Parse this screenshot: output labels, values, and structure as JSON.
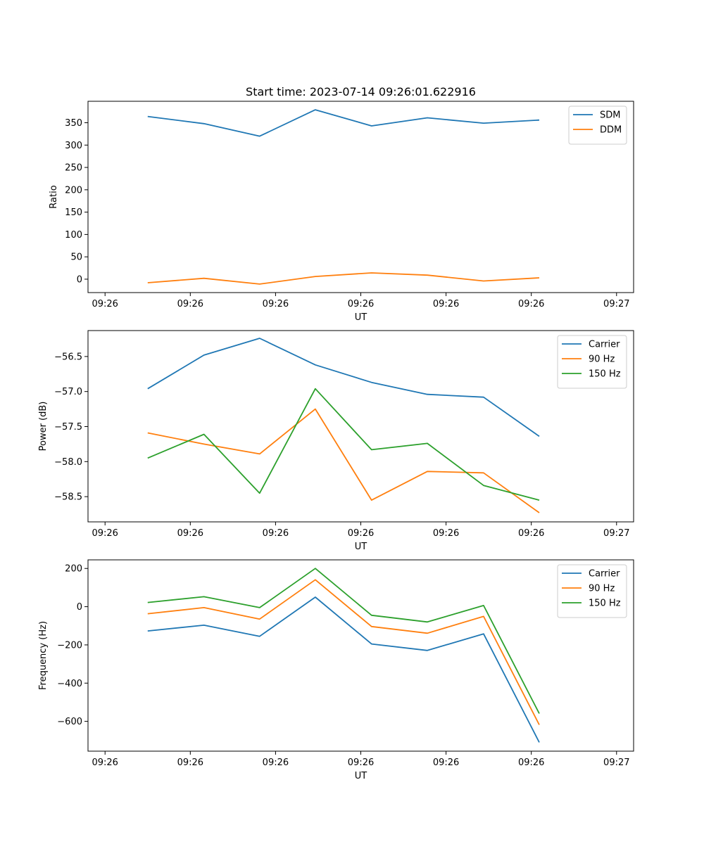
{
  "chart_data": [
    {
      "type": "line",
      "title": "Start time: 2023-07-14 09:26:01.622916",
      "xlabel": "UT",
      "ylabel": "Ratio",
      "xlim": [
        -0.3,
        9.3
      ],
      "ylim": [
        -30,
        398
      ],
      "xticks": [
        0,
        1.5,
        3,
        4.5,
        6,
        7.5,
        9
      ],
      "xtick_labels": [
        "09:26",
        "09:26",
        "09:26",
        "09:26",
        "09:26",
        "09:26",
        "09:27"
      ],
      "yticks": [
        0,
        50,
        100,
        150,
        200,
        250,
        300,
        350
      ],
      "ytick_labels": [
        "0",
        "50",
        "100",
        "150",
        "200",
        "250",
        "300",
        "350"
      ],
      "x": [
        0.75,
        1.74,
        2.72,
        3.7,
        4.69,
        5.67,
        6.66,
        7.64
      ],
      "legend": "top-right",
      "series": [
        {
          "name": "SDM",
          "color": "#1f77b4",
          "values": [
            364,
            348,
            320,
            379,
            343,
            361,
            349,
            356
          ]
        },
        {
          "name": "DDM",
          "color": "#ff7f0e",
          "values": [
            -8,
            2,
            -11,
            6,
            14,
            9,
            -4,
            3
          ]
        }
      ]
    },
    {
      "type": "line",
      "title": "",
      "xlabel": "UT",
      "ylabel": "Power (dB)",
      "xlim": [
        -0.3,
        9.3
      ],
      "ylim": [
        -58.86,
        -56.13
      ],
      "xticks": [
        0,
        1.5,
        3,
        4.5,
        6,
        7.5,
        9
      ],
      "xtick_labels": [
        "09:26",
        "09:26",
        "09:26",
        "09:26",
        "09:26",
        "09:26",
        "09:27"
      ],
      "yticks": [
        -58.5,
        -58.0,
        -57.5,
        -57.0,
        -56.5
      ],
      "ytick_labels": [
        "−58.5",
        "−58.0",
        "−57.5",
        "−57.0",
        "−56.5"
      ],
      "x": [
        0.75,
        1.74,
        2.72,
        3.7,
        4.69,
        5.67,
        6.66,
        7.64
      ],
      "legend": "top-right",
      "series": [
        {
          "name": "Carrier",
          "color": "#1f77b4",
          "values": [
            -56.96,
            -56.48,
            -56.24,
            -56.62,
            -56.87,
            -57.04,
            -57.08,
            -57.64
          ]
        },
        {
          "name": "90 Hz",
          "color": "#ff7f0e",
          "values": [
            -57.59,
            -57.75,
            -57.89,
            -57.25,
            -58.55,
            -58.14,
            -58.16,
            -58.73
          ]
        },
        {
          "name": "150 Hz",
          "color": "#2ca02c",
          "values": [
            -57.95,
            -57.61,
            -58.45,
            -56.96,
            -57.83,
            -57.74,
            -58.34,
            -58.55
          ]
        }
      ]
    },
    {
      "type": "line",
      "title": "",
      "xlabel": "UT",
      "ylabel": "Frequency (Hz)",
      "xlim": [
        -0.3,
        9.3
      ],
      "ylim": [
        -756,
        245
      ],
      "xticks": [
        0,
        1.5,
        3,
        4.5,
        6,
        7.5,
        9
      ],
      "xtick_labels": [
        "09:26",
        "09:26",
        "09:26",
        "09:26",
        "09:26",
        "09:26",
        "09:27"
      ],
      "yticks": [
        -600,
        -400,
        -200,
        0,
        200
      ],
      "ytick_labels": [
        "−600",
        "−400",
        "−200",
        "0",
        "200"
      ],
      "x": [
        0.75,
        1.74,
        2.72,
        3.7,
        4.69,
        5.67,
        6.66,
        7.64
      ],
      "legend": "top-right",
      "series": [
        {
          "name": "Carrier",
          "color": "#1f77b4",
          "values": [
            -127,
            -97,
            -155,
            50,
            -195,
            -229,
            -142,
            -710
          ]
        },
        {
          "name": "90 Hz",
          "color": "#ff7f0e",
          "values": [
            -37,
            -5,
            -65,
            141,
            -104,
            -139,
            -51,
            -618
          ]
        },
        {
          "name": "150 Hz",
          "color": "#2ca02c",
          "values": [
            22,
            52,
            -5,
            200,
            -45,
            -80,
            6,
            -559
          ]
        }
      ]
    }
  ]
}
